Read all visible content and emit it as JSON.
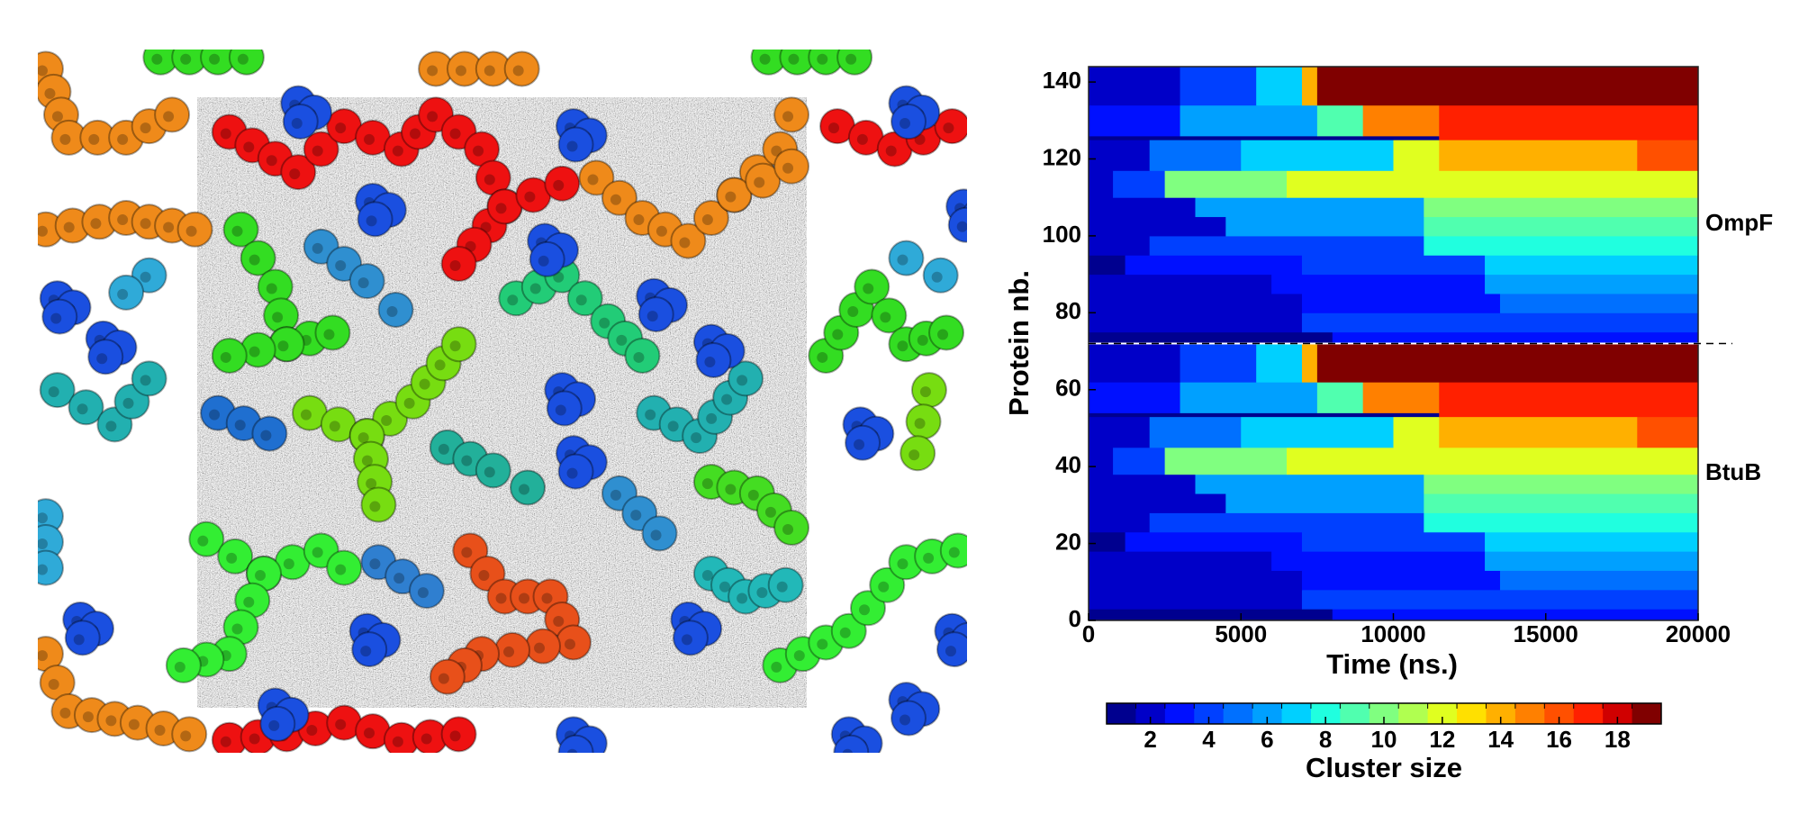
{
  "chart_data": {
    "type": "heatmap",
    "xlabel": "Time (ns.)",
    "ylabel": "Protein nb.",
    "xlim": [
      0,
      20000
    ],
    "xticks": [
      0,
      5000,
      10000,
      15000,
      20000
    ],
    "ylim": [
      0,
      144
    ],
    "yticks": [
      0,
      20,
      40,
      60,
      80,
      100,
      120,
      140
    ],
    "divider": 72,
    "annotations": [
      "OmpF",
      "BtuB"
    ],
    "colorbar": {
      "label": "Cluster size",
      "clim": [
        0.5,
        19.5
      ],
      "ticks": [
        2,
        4,
        6,
        8,
        10,
        12,
        14,
        16,
        18
      ],
      "colors": [
        "#00008f",
        "#0000c8",
        "#0010ff",
        "#0040ff",
        "#0070ff",
        "#00a0ff",
        "#00d0ff",
        "#20ffdf",
        "#50ffaf",
        "#80ff80",
        "#b0ff50",
        "#e0ff20",
        "#ffe000",
        "#ffb000",
        "#ff8000",
        "#ff5000",
        "#ff2000",
        "#d00000",
        "#800000"
      ]
    },
    "blocks": [
      {
        "rows": [
          0,
          3
        ],
        "segments": [
          [
            0,
            8000,
            1
          ],
          [
            8000,
            20000,
            3
          ]
        ]
      },
      {
        "rows": [
          3,
          8
        ],
        "segments": [
          [
            0,
            7000,
            2
          ],
          [
            7000,
            20000,
            4
          ]
        ]
      },
      {
        "rows": [
          8,
          13
        ],
        "segments": [
          [
            0,
            7000,
            2
          ],
          [
            7000,
            13500,
            3
          ],
          [
            13500,
            20000,
            5
          ]
        ]
      },
      {
        "rows": [
          13,
          18
        ],
        "segments": [
          [
            0,
            6000,
            2
          ],
          [
            6000,
            13000,
            3
          ],
          [
            13000,
            20000,
            6
          ]
        ]
      },
      {
        "rows": [
          18,
          23
        ],
        "segments": [
          [
            0,
            1200,
            1
          ],
          [
            1200,
            7000,
            3
          ],
          [
            7000,
            13000,
            4
          ],
          [
            13000,
            20000,
            7
          ]
        ]
      },
      {
        "rows": [
          23,
          28
        ],
        "segments": [
          [
            0,
            2000,
            2
          ],
          [
            2000,
            11000,
            4
          ],
          [
            11000,
            20000,
            8
          ]
        ]
      },
      {
        "rows": [
          28,
          33
        ],
        "segments": [
          [
            0,
            4500,
            2
          ],
          [
            4500,
            11000,
            6
          ],
          [
            11000,
            20000,
            9
          ]
        ]
      },
      {
        "rows": [
          33,
          38
        ],
        "segments": [
          [
            0,
            3500,
            2
          ],
          [
            3500,
            11000,
            6
          ],
          [
            11000,
            20000,
            10
          ]
        ]
      },
      {
        "rows": [
          38,
          45
        ],
        "segments": [
          [
            0,
            800,
            2
          ],
          [
            800,
            2500,
            4
          ],
          [
            2500,
            6500,
            10
          ],
          [
            6500,
            20000,
            12
          ]
        ]
      },
      {
        "rows": [
          45,
          53
        ],
        "segments": [
          [
            0,
            2000,
            2
          ],
          [
            2000,
            5000,
            5
          ],
          [
            5000,
            10000,
            7
          ],
          [
            10000,
            11500,
            12
          ],
          [
            11500,
            18000,
            14
          ],
          [
            18000,
            20000,
            16
          ]
        ]
      },
      {
        "rows": [
          53,
          54
        ],
        "segments": [
          [
            0,
            11500,
            1
          ],
          [
            11500,
            20000,
            17
          ]
        ]
      },
      {
        "rows": [
          54,
          62
        ],
        "segments": [
          [
            0,
            3000,
            3
          ],
          [
            3000,
            7500,
            6
          ],
          [
            7500,
            9000,
            9
          ],
          [
            9000,
            11500,
            15
          ],
          [
            11500,
            20000,
            17
          ]
        ]
      },
      {
        "rows": [
          62,
          72
        ],
        "segments": [
          [
            0,
            3000,
            2
          ],
          [
            3000,
            5500,
            4
          ],
          [
            5500,
            7000,
            7
          ],
          [
            7000,
            7500,
            14
          ],
          [
            7500,
            20000,
            19
          ]
        ]
      },
      {
        "rows": [
          72,
          75
        ],
        "segments": [
          [
            0,
            8000,
            1
          ],
          [
            8000,
            20000,
            3
          ]
        ]
      },
      {
        "rows": [
          75,
          80
        ],
        "segments": [
          [
            0,
            7000,
            2
          ],
          [
            7000,
            20000,
            4
          ]
        ]
      },
      {
        "rows": [
          80,
          85
        ],
        "segments": [
          [
            0,
            7000,
            2
          ],
          [
            7000,
            13500,
            3
          ],
          [
            13500,
            20000,
            5
          ]
        ]
      },
      {
        "rows": [
          85,
          90
        ],
        "segments": [
          [
            0,
            6000,
            2
          ],
          [
            6000,
            13000,
            3
          ],
          [
            13000,
            20000,
            6
          ]
        ]
      },
      {
        "rows": [
          90,
          95
        ],
        "segments": [
          [
            0,
            1200,
            1
          ],
          [
            1200,
            7000,
            3
          ],
          [
            7000,
            13000,
            4
          ],
          [
            13000,
            20000,
            7
          ]
        ]
      },
      {
        "rows": [
          95,
          100
        ],
        "segments": [
          [
            0,
            2000,
            2
          ],
          [
            2000,
            11000,
            4
          ],
          [
            11000,
            20000,
            8
          ]
        ]
      },
      {
        "rows": [
          100,
          105
        ],
        "segments": [
          [
            0,
            4500,
            2
          ],
          [
            4500,
            11000,
            6
          ],
          [
            11000,
            20000,
            9
          ]
        ]
      },
      {
        "rows": [
          105,
          110
        ],
        "segments": [
          [
            0,
            3500,
            2
          ],
          [
            3500,
            11000,
            6
          ],
          [
            11000,
            20000,
            10
          ]
        ]
      },
      {
        "rows": [
          110,
          117
        ],
        "segments": [
          [
            0,
            800,
            2
          ],
          [
            800,
            2500,
            4
          ],
          [
            2500,
            6500,
            10
          ],
          [
            6500,
            20000,
            12
          ]
        ]
      },
      {
        "rows": [
          117,
          125
        ],
        "segments": [
          [
            0,
            2000,
            2
          ],
          [
            2000,
            5000,
            5
          ],
          [
            5000,
            10000,
            7
          ],
          [
            10000,
            11500,
            12
          ],
          [
            11500,
            18000,
            14
          ],
          [
            18000,
            20000,
            16
          ]
        ]
      },
      {
        "rows": [
          125,
          126
        ],
        "segments": [
          [
            0,
            11500,
            1
          ],
          [
            11500,
            20000,
            17
          ]
        ]
      },
      {
        "rows": [
          126,
          134
        ],
        "segments": [
          [
            0,
            3000,
            3
          ],
          [
            3000,
            7500,
            6
          ],
          [
            7500,
            9000,
            9
          ],
          [
            9000,
            11500,
            15
          ],
          [
            11500,
            20000,
            17
          ]
        ]
      },
      {
        "rows": [
          134,
          144
        ],
        "segments": [
          [
            0,
            3000,
            2
          ],
          [
            3000,
            5500,
            4
          ],
          [
            5500,
            7000,
            7
          ],
          [
            7000,
            7500,
            14
          ],
          [
            7500,
            20000,
            19
          ]
        ]
      }
    ]
  }
}
